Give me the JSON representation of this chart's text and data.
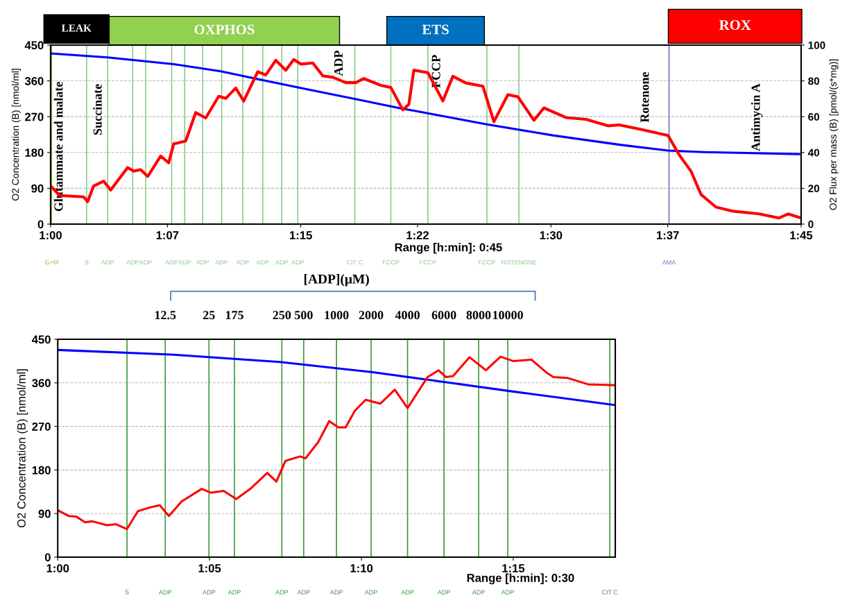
{
  "chart_data": [
    {
      "type": "line",
      "xlabel": "Range [h:min]: 0:45",
      "ylabel": "O2 Concentration (B) [nmol/ml]",
      "y2label": "O2 Flux per mass (B) [pmol/(s*mg)]",
      "xlim": [
        1.0,
        1.75
      ],
      "xticks": [
        {
          "value": 1.0,
          "label": "1:00"
        },
        {
          "value": 1.1167,
          "label": "1:07"
        },
        {
          "value": 1.25,
          "label": "1:15"
        },
        {
          "value": 1.3667,
          "label": "1:22"
        },
        {
          "value": 1.5,
          "label": "1:30"
        },
        {
          "value": 1.6167,
          "label": "1:37"
        },
        {
          "value": 1.75,
          "label": "1:45"
        }
      ],
      "ylim": [
        0,
        450
      ],
      "yticks": [
        0,
        90,
        180,
        270,
        360,
        450
      ],
      "y2lim": [
        0,
        100
      ],
      "y2ticks": [
        0,
        20,
        40,
        60,
        80,
        100
      ],
      "grid": "y",
      "series": [
        {
          "color": "#0000ff",
          "x": [
            1.0,
            1.057,
            1.123,
            1.17,
            1.212,
            1.248,
            1.303,
            1.35,
            1.363,
            1.435,
            1.502,
            1.57,
            1.617,
            1.653,
            1.748
          ],
          "values": [
            429,
            419,
            402,
            384,
            362,
            343,
            315,
            291,
            285,
            251,
            223,
            199,
            185,
            181,
            176
          ]
        },
        {
          "color": "#ff0000",
          "axis": "y2",
          "x": [
            1.0,
            1.009,
            1.033,
            1.037,
            1.043,
            1.053,
            1.06,
            1.077,
            1.083,
            1.09,
            1.097,
            1.11,
            1.118,
            1.123,
            1.135,
            1.145,
            1.155,
            1.168,
            1.175,
            1.185,
            1.193,
            1.207,
            1.215,
            1.225,
            1.235,
            1.243,
            1.25,
            1.262,
            1.272,
            1.282,
            1.295,
            1.305,
            1.313,
            1.33,
            1.34,
            1.352,
            1.358,
            1.363,
            1.377,
            1.392,
            1.402,
            1.415,
            1.432,
            1.443,
            1.457,
            1.467,
            1.483,
            1.493,
            1.515,
            1.535,
            1.557,
            1.568,
            1.59,
            1.617,
            1.628,
            1.64,
            1.65,
            1.665,
            1.682,
            1.708,
            1.728,
            1.737,
            1.748
          ],
          "values": [
            21.3,
            16,
            15.2,
            12.5,
            21.3,
            24,
            19,
            31.6,
            29.6,
            30.4,
            26.6,
            38,
            34.2,
            44.8,
            46.4,
            62.3,
            59.3,
            71.4,
            70.2,
            76,
            68.7,
            85.1,
            83.3,
            91.5,
            85.9,
            91.9,
            89.4,
            90,
            82.8,
            82,
            79,
            79,
            81.3,
            77.5,
            76.3,
            63.8,
            66.9,
            86,
            84.6,
            68.8,
            82.6,
            78.8,
            77,
            57.2,
            72.3,
            71.1,
            58,
            64.9,
            59.5,
            58.5,
            54.9,
            55.4,
            52.9,
            49.5,
            38.8,
            29.5,
            16.5,
            9.5,
            7.2,
            5.7,
            3.4,
            5.7,
            3.7
          ]
        }
      ],
      "ref_lines": [
        {
          "axis": "x",
          "value": 1.001,
          "label": "G+M",
          "color": "#8fc93a"
        },
        {
          "axis": "x",
          "value": 1.036,
          "label": "S",
          "color": "#8cc98c"
        },
        {
          "axis": "x",
          "value": 1.057,
          "label": "ADP",
          "color": "#8cc98c"
        },
        {
          "axis": "x",
          "value": 1.082,
          "label": "ADP",
          "color": "#8cc98c"
        },
        {
          "axis": "x",
          "value": 1.095,
          "label": "ADP",
          "color": "#8cc98c"
        },
        {
          "axis": "x",
          "value": 1.121,
          "label": "ADP",
          "color": "#8cc98c"
        },
        {
          "axis": "x",
          "value": 1.134,
          "label": "ADP",
          "color": "#8cc98c"
        },
        {
          "axis": "x",
          "value": 1.152,
          "label": "ADP",
          "color": "#8cc98c"
        },
        {
          "axis": "x",
          "value": 1.171,
          "label": "ADP",
          "color": "#8cc98c"
        },
        {
          "axis": "x",
          "value": 1.192,
          "label": "ADP",
          "color": "#8cc98c"
        },
        {
          "axis": "x",
          "value": 1.212,
          "label": "ADP",
          "color": "#8cc98c"
        },
        {
          "axis": "x",
          "value": 1.231,
          "label": "ADP",
          "color": "#8cc98c"
        },
        {
          "axis": "x",
          "value": 1.247,
          "label": "ADP",
          "color": "#8cc98c"
        },
        {
          "axis": "x",
          "value": 1.304,
          "label": "CIT C",
          "color": "#8cc98c"
        },
        {
          "axis": "x",
          "value": 1.34,
          "label": "FCCP",
          "color": "#8cc98c"
        },
        {
          "axis": "x",
          "value": 1.377,
          "label": "FCCP",
          "color": "#8cc98c"
        },
        {
          "axis": "x",
          "value": 1.436,
          "label": "FCCP",
          "color": "#8cc98c"
        },
        {
          "axis": "x",
          "value": 1.468,
          "label": "ROTENONE",
          "color": "#8cc98c"
        },
        {
          "axis": "x",
          "value": 1.618,
          "label": "AMA",
          "color": "#7070cc"
        }
      ],
      "annotations": [
        "LEAK",
        "OXPHOS",
        "ETS",
        "ROX",
        "Glutammate and malate",
        "Succinate",
        "ADP",
        "FCCP",
        "Rotenone",
        "Antimycin A"
      ]
    },
    {
      "type": "line",
      "title": "[ADP](μM)",
      "xlabel": "Range [h:min]: 0:30",
      "ylabel": "O2 Concentration (B) [nmol/ml]",
      "xlim": [
        1.0,
        1.306
      ],
      "xticks": [
        {
          "value": 1.0,
          "label": "1:00"
        },
        {
          "value": 1.0833,
          "label": "1:05"
        },
        {
          "value": 1.1667,
          "label": "1:10"
        },
        {
          "value": 1.25,
          "label": "1:15"
        }
      ],
      "ylim": [
        0,
        450
      ],
      "yticks": [
        0,
        90,
        180,
        270,
        360,
        450
      ],
      "grid": "y",
      "series": [
        {
          "color": "#0000ff",
          "x": [
            1.0,
            1.064,
            1.122,
            1.173,
            1.212,
            1.25,
            1.306
          ],
          "values": [
            428,
            418,
            403,
            382,
            362,
            342,
            314
          ]
        },
        {
          "color": "#ff0000",
          "x": [
            1.0,
            1.006,
            1.01,
            1.015,
            1.019,
            1.027,
            1.032,
            1.038,
            1.044,
            1.05,
            1.056,
            1.061,
            1.068,
            1.079,
            1.084,
            1.091,
            1.098,
            1.106,
            1.115,
            1.12,
            1.125,
            1.133,
            1.136,
            1.143,
            1.149,
            1.154,
            1.158,
            1.163,
            1.169,
            1.177,
            1.185,
            1.192,
            1.203,
            1.209,
            1.213,
            1.217,
            1.226,
            1.235,
            1.243,
            1.25,
            1.26,
            1.268,
            1.272,
            1.28,
            1.291,
            1.306
          ],
          "values": [
            97,
            85,
            84,
            72,
            74,
            66,
            68,
            58,
            95,
            102,
            107,
            85,
            115,
            141,
            133,
            137,
            120,
            142,
            174,
            156,
            199,
            208,
            204,
            238,
            281,
            268,
            268,
            302,
            325,
            317,
            346,
            308,
            372,
            386,
            372,
            374,
            413,
            386,
            414,
            405,
            408,
            382,
            372,
            370,
            357,
            355
          ]
        }
      ],
      "ref_lines": [
        {
          "axis": "x",
          "value": 1.038,
          "label": "S",
          "color": "#3a9a3a"
        },
        {
          "axis": "x",
          "value": 1.059,
          "label": "ADP",
          "color": "#3a9a3a"
        },
        {
          "axis": "x",
          "value": 1.083,
          "label": "ADP",
          "color": "#3a9a3a"
        },
        {
          "axis": "x",
          "value": 1.097,
          "label": "ADP",
          "color": "#3a9a3a"
        },
        {
          "axis": "x",
          "value": 1.123,
          "label": "ADP",
          "color": "#3a9a3a"
        },
        {
          "axis": "x",
          "value": 1.135,
          "label": "ADP",
          "color": "#3a9a3a"
        },
        {
          "axis": "x",
          "value": 1.153,
          "label": "ADP",
          "color": "#3a9a3a"
        },
        {
          "axis": "x",
          "value": 1.172,
          "label": "ADP",
          "color": "#3a9a3a"
        },
        {
          "axis": "x",
          "value": 1.192,
          "label": "ADP",
          "color": "#3a9a3a"
        },
        {
          "axis": "x",
          "value": 1.212,
          "label": "ADP",
          "color": "#3a9a3a"
        },
        {
          "axis": "x",
          "value": 1.231,
          "label": "ADP",
          "color": "#3a9a3a"
        },
        {
          "axis": "x",
          "value": 1.247,
          "label": "ADP",
          "color": "#3a9a3a"
        },
        {
          "axis": "x",
          "value": 1.303,
          "label": "CIT C",
          "color": "#3a9a3a"
        }
      ],
      "annotations": [
        "12.5",
        "25",
        "175",
        "250",
        "500",
        "1000",
        "2000",
        "4000",
        "6000",
        "8000",
        "10000"
      ]
    }
  ]
}
